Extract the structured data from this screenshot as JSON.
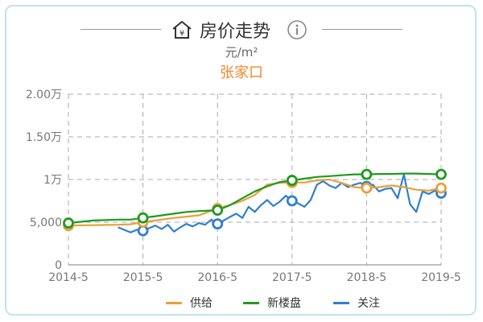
{
  "header": {
    "title": "房价走势",
    "unit": "元/m²",
    "city": "张家口",
    "home_icon": "home-yen-icon",
    "info_icon": "info-icon"
  },
  "colors": {
    "供给": "#e8a03a",
    "新楼盘": "#1f9a1f",
    "关注": "#2f7fd0",
    "grid": "#aaaaaa",
    "axis_text": "#777777"
  },
  "chart_data": {
    "type": "line",
    "x_ticks": [
      "2014-5",
      "2015-5",
      "2016-5",
      "2017-5",
      "2018-5",
      "2019-5"
    ],
    "y_ticks": [
      "0",
      "5,000",
      "1万",
      "1.50万",
      "2.00万"
    ],
    "ylim": [
      0,
      20000
    ],
    "grid": true,
    "legend_position": "bottom",
    "series": [
      {
        "name": "供给",
        "x": [
          0,
          4,
          8,
          10,
          12,
          14,
          17,
          19,
          21,
          24,
          26,
          28,
          30,
          32,
          34,
          36,
          38,
          40,
          42,
          44,
          46,
          48,
          50,
          52,
          54,
          56,
          58,
          60
        ],
        "y": [
          4600,
          4650,
          4700,
          4750,
          5000,
          5200,
          5500,
          5650,
          5800,
          6600,
          7000,
          7500,
          8200,
          9400,
          9600,
          9650,
          9650,
          9900,
          10000,
          9600,
          9100,
          9000,
          9100,
          9300,
          9100,
          8800,
          8700,
          9000
        ],
        "markers": [
          0,
          12,
          24,
          36,
          48,
          60
        ]
      },
      {
        "name": "新楼盘",
        "x": [
          0,
          4,
          8,
          10,
          12,
          14,
          17,
          19,
          21,
          24,
          26,
          28,
          30,
          32,
          34,
          36,
          38,
          40,
          42,
          44,
          46,
          48,
          50,
          52,
          54,
          56,
          58,
          60
        ],
        "y": [
          4900,
          5200,
          5300,
          5300,
          5500,
          5700,
          6000,
          6200,
          6300,
          6400,
          7000,
          7800,
          8600,
          9200,
          9700,
          9900,
          10100,
          10300,
          10400,
          10500,
          10600,
          10600,
          10650,
          10650,
          10700,
          10700,
          10650,
          10600
        ],
        "markers": [
          0,
          12,
          24,
          36,
          48,
          60
        ]
      },
      {
        "name": "关注",
        "x": [
          8,
          10,
          11,
          12,
          13,
          14,
          15,
          16,
          17,
          18,
          19,
          20,
          21,
          22,
          23,
          24,
          25,
          26,
          27,
          28,
          29,
          30,
          31,
          32,
          33,
          34,
          35,
          36,
          37,
          38,
          39,
          40,
          41,
          42,
          43,
          44,
          45,
          46,
          47,
          48,
          49,
          50,
          51,
          52,
          53,
          54,
          55,
          56,
          57,
          58,
          59,
          60
        ],
        "y": [
          4400,
          3800,
          4100,
          4000,
          4300,
          4600,
          4200,
          4700,
          3900,
          4400,
          4800,
          4500,
          4900,
          4700,
          5300,
          4800,
          5200,
          5600,
          6000,
          5500,
          6800,
          6200,
          7000,
          7600,
          6900,
          7400,
          8100,
          7500,
          7200,
          6800,
          7600,
          9400,
          9800,
          9300,
          9000,
          9600,
          9100,
          9400,
          9600,
          9200,
          9400,
          8600,
          8900,
          9000,
          7800,
          10600,
          7100,
          6200,
          8600,
          8300,
          8700,
          8400
        ],
        "markers": [
          12,
          24,
          36,
          48,
          60
        ]
      }
    ]
  },
  "legend": [
    {
      "label": "供给"
    },
    {
      "label": "新楼盘"
    },
    {
      "label": "关注"
    }
  ]
}
